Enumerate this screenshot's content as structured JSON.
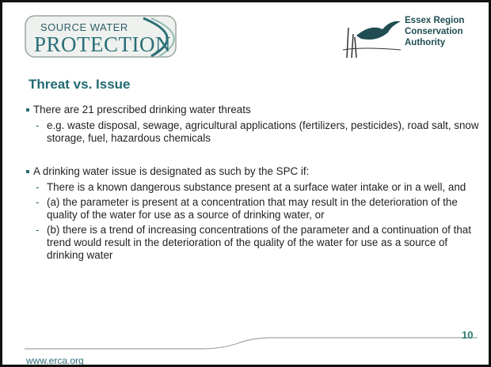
{
  "logo_left": {
    "line1": "SOURCE WATER",
    "line2": "PROTECTION"
  },
  "logo_right": {
    "lines": [
      "Essex Region",
      "Conservation",
      "Authority"
    ]
  },
  "title": "Threat vs. Issue",
  "bullets": [
    {
      "text": "There are 21 prescribed drinking water threats",
      "subitems": [
        "e.g. waste disposal, sewage, agricultural applications (fertilizers, pesticides), road salt, snow storage, fuel, hazardous chemicals"
      ]
    },
    {
      "text": "A drinking water issue is designated as such by the SPC if:",
      "subitems": [
        "There is a known dangerous substance present at a surface water intake or in a well, and",
        "(a) the parameter is present at a concentration that may result in the deterioration of the quality of the water for use as a source of drinking water, or",
        "(b) there is a trend of increasing concentrations of the parameter and a continuation of that trend would result in the deterioration of the quality of the water for use as a source of drinking water"
      ]
    }
  ],
  "footer": {
    "url": "www.erca.org",
    "page": 10
  }
}
